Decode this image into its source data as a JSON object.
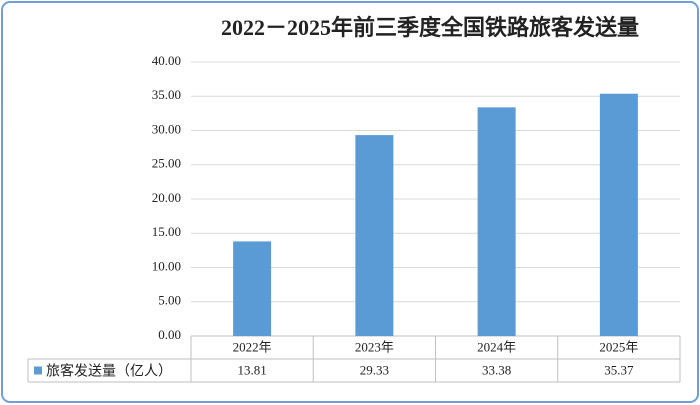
{
  "chart_data": {
    "type": "bar",
    "title": "2022－2025年前三季度全国铁路旅客发送量",
    "categories": [
      "2022年",
      "2023年",
      "2024年",
      "2025年"
    ],
    "series": [
      {
        "name": "旅客发送量（亿人）",
        "color": "#5b9bd5",
        "values": [
          13.81,
          29.33,
          33.38,
          35.37
        ]
      }
    ],
    "ylim": [
      0,
      40
    ],
    "yticks": [
      {
        "value": 0,
        "label": "0.00"
      },
      {
        "value": 5,
        "label": "5.00"
      },
      {
        "value": 10,
        "label": "10.00"
      },
      {
        "value": 15,
        "label": "15.00"
      },
      {
        "value": 20,
        "label": "20.00"
      },
      {
        "value": 25,
        "label": "25.00"
      },
      {
        "value": 30,
        "label": "30.00"
      },
      {
        "value": 35,
        "label": "35.00"
      },
      {
        "value": 40,
        "label": "40.00"
      }
    ],
    "grid": true
  }
}
